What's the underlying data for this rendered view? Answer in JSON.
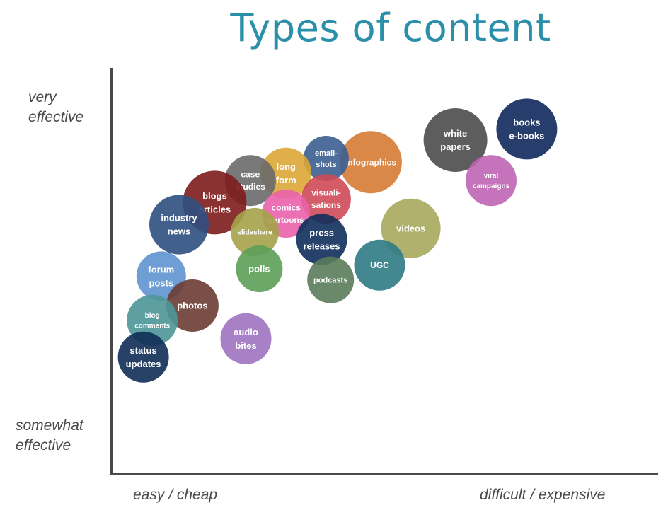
{
  "chart_data": {
    "type": "scatter",
    "title": "Types of content",
    "xlabel": "",
    "ylabel": "",
    "x_axis_labels": {
      "low": "easy / cheap",
      "high": "difficult / expensive"
    },
    "y_axis_labels": {
      "low": [
        "somewhat",
        "effective"
      ],
      "high": [
        "very",
        "effective"
      ]
    },
    "xlim": [
      0,
      100
    ],
    "ylim": [
      0,
      100
    ],
    "grid": false,
    "points": [
      {
        "label": [
          "books",
          "e-books"
        ],
        "x": 88,
        "y": 88,
        "r": 43,
        "color": "#10285c",
        "font": 13
      },
      {
        "label": [
          "white",
          "papers"
        ],
        "x": 72,
        "y": 85,
        "r": 45,
        "color": "#4b4b4b",
        "font": 13
      },
      {
        "label": [
          "viral",
          "campaigns"
        ],
        "x": 80,
        "y": 74,
        "r": 36,
        "color": "#bf64b4",
        "font": 10
      },
      {
        "label": [
          "infographics"
        ],
        "x": 53,
        "y": 79,
        "r": 44,
        "color": "#d67b34",
        "font": 12
      },
      {
        "label": [
          "email-",
          "shots"
        ],
        "x": 43,
        "y": 80,
        "r": 32,
        "color": "#3b5f91",
        "font": 11
      },
      {
        "label": [
          "long",
          "form"
        ],
        "x": 34,
        "y": 76,
        "r": 36,
        "color": "#dca636",
        "font": 13
      },
      {
        "label": [
          "case",
          "studies"
        ],
        "x": 26,
        "y": 74,
        "r": 36,
        "color": "#6a6a6a",
        "font": 12
      },
      {
        "label": [
          "visuali-",
          "sations"
        ],
        "x": 43,
        "y": 69,
        "r": 35,
        "color": "#cf4958",
        "font": 12
      },
      {
        "label": [
          "blogs",
          "articles"
        ],
        "x": 18,
        "y": 68,
        "r": 45,
        "color": "#7d1c1c",
        "font": 13
      },
      {
        "label": [
          "industry",
          "news"
        ],
        "x": 10,
        "y": 62,
        "r": 42,
        "color": "#2d4f7f",
        "font": 13
      },
      {
        "label": [
          "comics",
          "cartoons"
        ],
        "x": 34,
        "y": 65,
        "r": 34,
        "color": "#ea62ac",
        "font": 12
      },
      {
        "label": [
          "slideshare"
        ],
        "x": 27,
        "y": 60,
        "r": 34,
        "color": "#a5a24a",
        "font": 10
      },
      {
        "label": [
          "press",
          "releases"
        ],
        "x": 42,
        "y": 58,
        "r": 36,
        "color": "#0f2f5c",
        "font": 13
      },
      {
        "label": [
          "videos"
        ],
        "x": 62,
        "y": 61,
        "r": 42,
        "color": "#a7a85d",
        "font": 13
      },
      {
        "label": [
          "UGC"
        ],
        "x": 55,
        "y": 51,
        "r": 36,
        "color": "#2f7b84",
        "font": 12
      },
      {
        "label": [
          "polls"
        ],
        "x": 28,
        "y": 50,
        "r": 33,
        "color": "#5c9f56",
        "font": 13
      },
      {
        "label": [
          "podcasts"
        ],
        "x": 44,
        "y": 47,
        "r": 33,
        "color": "#5a7c5a",
        "font": 11
      },
      {
        "label": [
          "forum",
          "posts"
        ],
        "x": 6,
        "y": 48,
        "r": 35,
        "color": "#5f93cf",
        "font": 13
      },
      {
        "label": [
          "photos"
        ],
        "x": 13,
        "y": 40,
        "r": 37,
        "color": "#6a3c33",
        "font": 13
      },
      {
        "label": [
          "blog",
          "comments"
        ],
        "x": 4,
        "y": 36,
        "r": 36,
        "color": "#4d9698",
        "font": 10
      },
      {
        "label": [
          "audio",
          "bites"
        ],
        "x": 25,
        "y": 31,
        "r": 36,
        "color": "#9f72bf",
        "font": 13
      },
      {
        "label": [
          "status",
          "updates"
        ],
        "x": 2,
        "y": 26,
        "r": 36,
        "color": "#0f2d55",
        "font": 13
      }
    ]
  }
}
